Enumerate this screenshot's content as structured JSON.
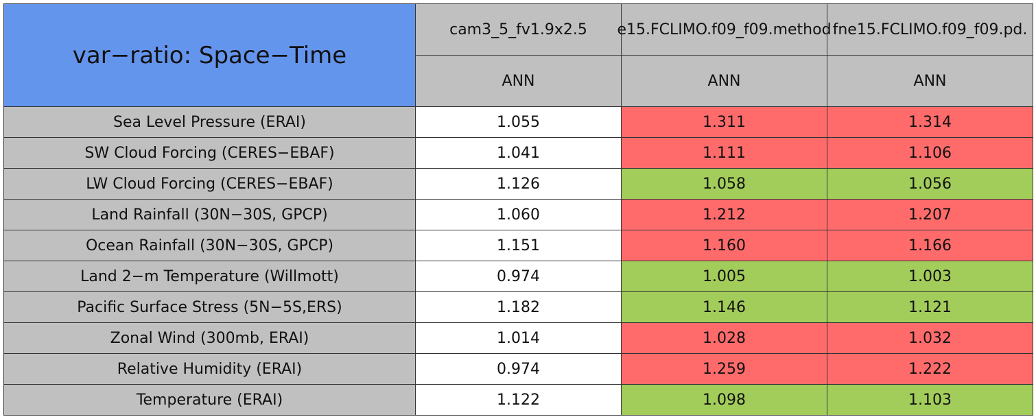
{
  "table": {
    "title": "var−ratio: Space−Time",
    "title_color": "#6495ed",
    "header_color": "#c0c0c0",
    "columns": [
      {
        "name": "cam3_5_fv1.9x2.5",
        "period": "ANN"
      },
      {
        "name": "e15.FCLIMO.f09_f09.method",
        "period": "ANN"
      },
      {
        "name": "fne15.FCLIMO.f09_f09.pd.",
        "period": "ANN"
      }
    ],
    "rows": [
      {
        "label": "Sea Level Pressure (ERAI)",
        "values": [
          "1.055",
          "1.311",
          "1.314"
        ],
        "colors": [
          "#ffffff",
          "#ff6b6b",
          "#ff6b6b"
        ]
      },
      {
        "label": "SW Cloud Forcing (CERES−EBAF)",
        "values": [
          "1.041",
          "1.111",
          "1.106"
        ],
        "colors": [
          "#ffffff",
          "#ff6b6b",
          "#ff6b6b"
        ]
      },
      {
        "label": "LW Cloud Forcing (CERES−EBAF)",
        "values": [
          "1.126",
          "1.058",
          "1.056"
        ],
        "colors": [
          "#ffffff",
          "#a3cd5a",
          "#a3cd5a"
        ]
      },
      {
        "label": "Land Rainfall (30N−30S, GPCP)",
        "values": [
          "1.060",
          "1.212",
          "1.207"
        ],
        "colors": [
          "#ffffff",
          "#ff6b6b",
          "#ff6b6b"
        ]
      },
      {
        "label": "Ocean Rainfall (30N−30S, GPCP)",
        "values": [
          "1.151",
          "1.160",
          "1.166"
        ],
        "colors": [
          "#ffffff",
          "#ff6b6b",
          "#ff6b6b"
        ]
      },
      {
        "label": "Land 2−m Temperature (Willmott)",
        "values": [
          "0.974",
          "1.005",
          "1.003"
        ],
        "colors": [
          "#ffffff",
          "#a3cd5a",
          "#a3cd5a"
        ]
      },
      {
        "label": "Pacific Surface Stress (5N−5S,ERS)",
        "values": [
          "1.182",
          "1.146",
          "1.121"
        ],
        "colors": [
          "#ffffff",
          "#a3cd5a",
          "#a3cd5a"
        ]
      },
      {
        "label": "Zonal Wind (300mb, ERAI)",
        "values": [
          "1.014",
          "1.028",
          "1.032"
        ],
        "colors": [
          "#ffffff",
          "#ff6b6b",
          "#ff6b6b"
        ]
      },
      {
        "label": "Relative Humidity (ERAI)",
        "values": [
          "0.974",
          "1.259",
          "1.222"
        ],
        "colors": [
          "#ffffff",
          "#ff6b6b",
          "#ff6b6b"
        ]
      },
      {
        "label": "Temperature (ERAI)",
        "values": [
          "1.122",
          "1.098",
          "1.103"
        ],
        "colors": [
          "#ffffff",
          "#a3cd5a",
          "#a3cd5a"
        ]
      }
    ]
  }
}
